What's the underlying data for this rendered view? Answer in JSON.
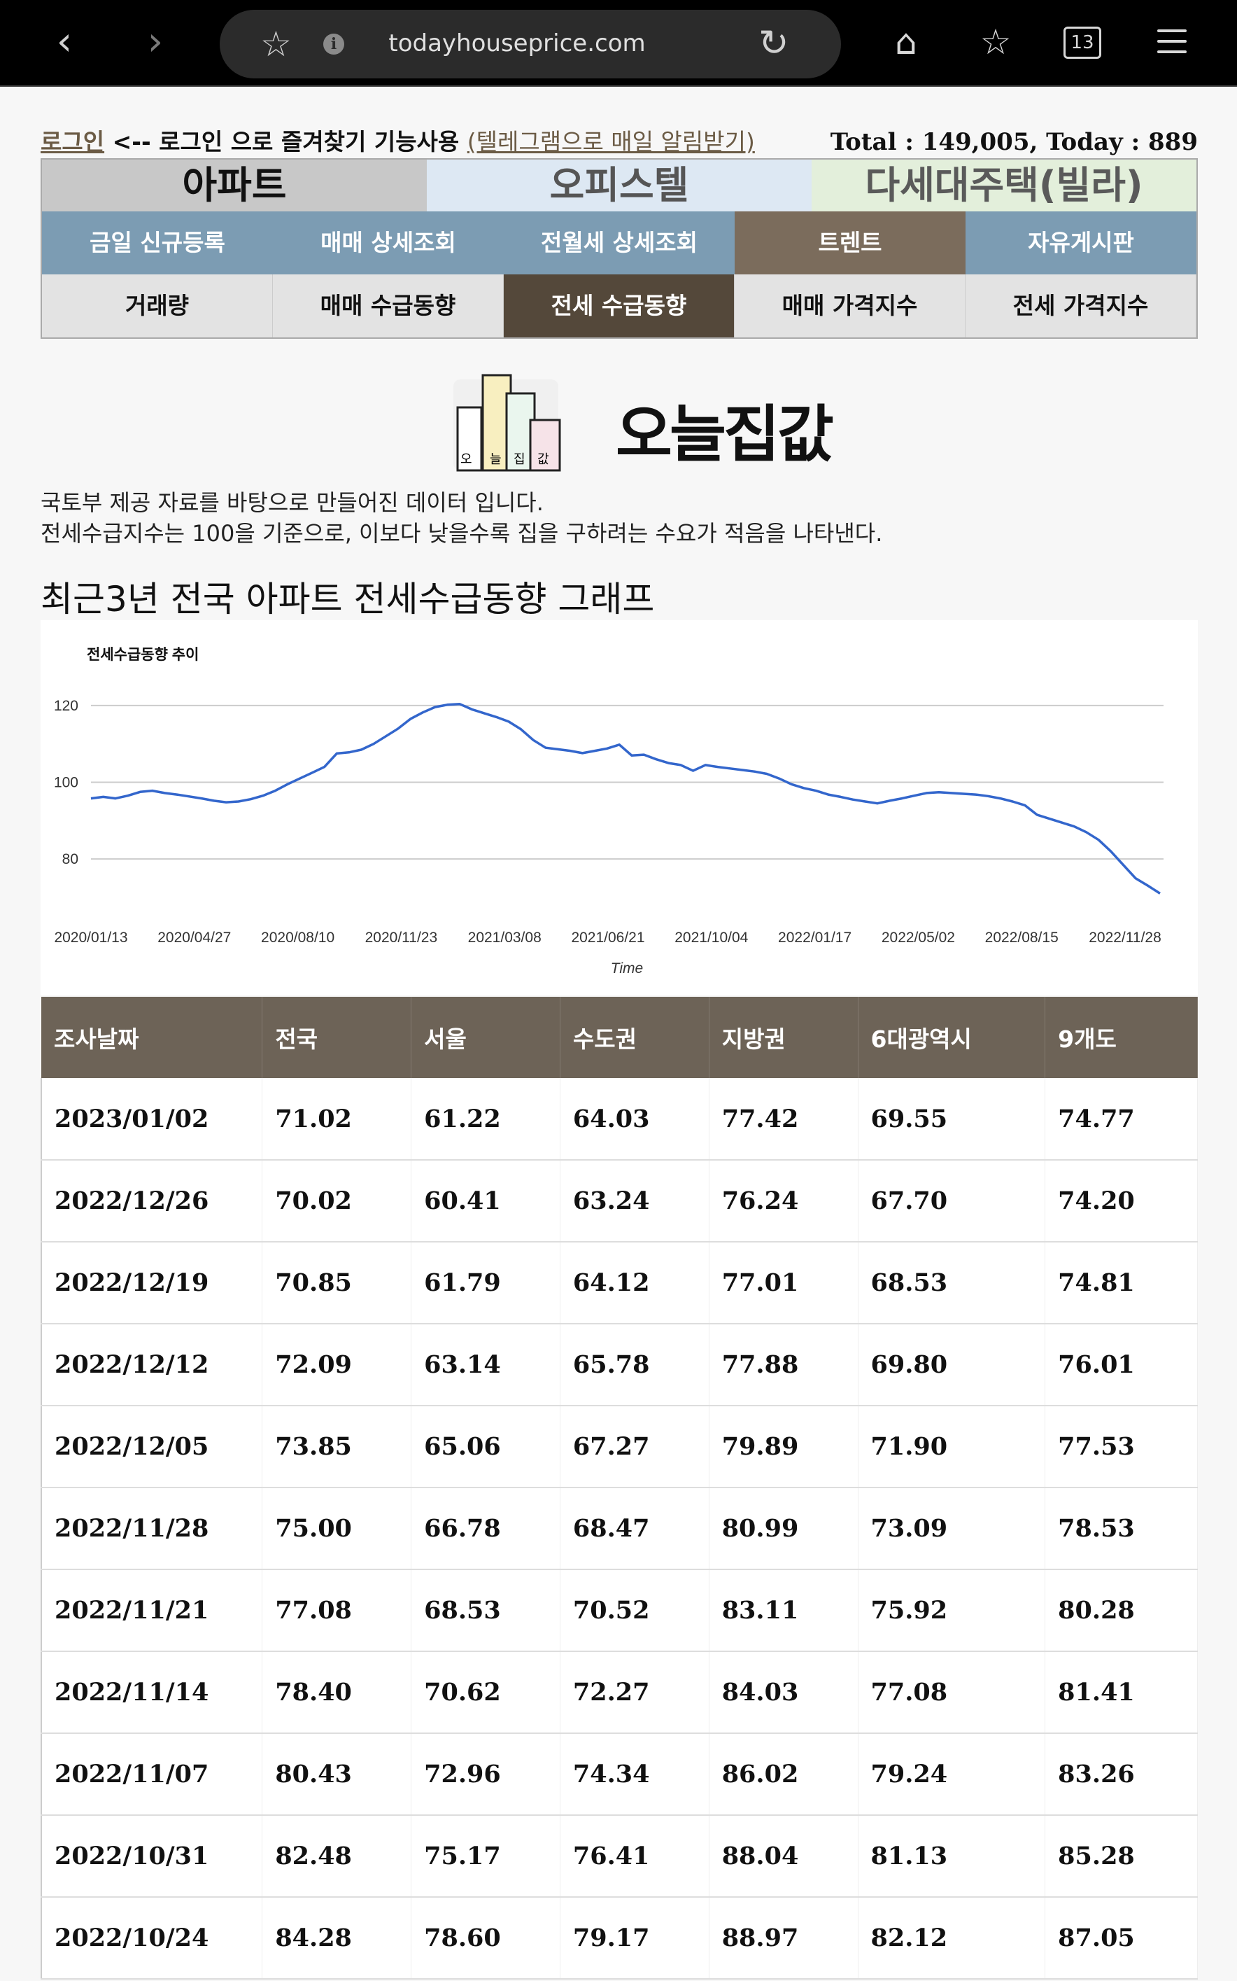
{
  "browser": {
    "url": "todayhouseprice.com",
    "tab_count": "13"
  },
  "header": {
    "login_link": "로그인",
    "login_note": "<-- 로그인 으로 즐겨찾기 기능사용",
    "telegram_link": "(텔레그램으로 매일 알림받기)",
    "total_text": "Total : 149,005, Today : 889"
  },
  "nav": {
    "category_tabs": [
      {
        "label": "아파트",
        "bg": "#c8c8c8",
        "color": "#111111"
      },
      {
        "label": "오피스텔",
        "bg": "#dde8f3",
        "color": "#555555"
      },
      {
        "label": "다세대주택(빌라)",
        "bg": "#e3efdb",
        "color": "#5a5a5a"
      }
    ],
    "menu_row": [
      "금일 신규등록",
      "매매 상세조회",
      "전월세 상세조회",
      "트렌트",
      "자유게시판"
    ],
    "menu_selected": 3,
    "trend_row": [
      "거래량",
      "매매 수급동향",
      "전세 수급동향",
      "매매 가격지수",
      "전세 가격지수"
    ],
    "trend_selected": 2
  },
  "logo": {
    "text": "오늘집값",
    "icon_name": "building-logo-icon"
  },
  "description": {
    "line1": "국토부 제공 자료를 바탕으로 만들어진 데이터 입니다.",
    "line2": "전세수급지수는 100을 기준으로, 이보다 낮을수록 집을 구하려는 수요가 적음을 나타낸다."
  },
  "graph_title": "최근3년 전국 아파트 전세수급동향 그래프",
  "chart_data": {
    "type": "line",
    "title": "전세수급동향 추이",
    "xlabel": "Time",
    "ylabel": "",
    "ylim": [
      70,
      124
    ],
    "yticks": [
      80,
      100,
      120
    ],
    "grid": true,
    "legend": "none",
    "line_color": "#3366cc",
    "x_tick_labels": [
      "2020/01/13",
      "2020/04/27",
      "2020/08/10",
      "2020/11/23",
      "2021/03/08",
      "2021/06/21",
      "2021/10/04",
      "2022/01/17",
      "2022/05/02",
      "2022/08/15",
      "2022/11/28"
    ],
    "series": [
      {
        "values": [
          95.8,
          96.2,
          95.8,
          96.5,
          97.5,
          97.8,
          97.2,
          96.8,
          96.3,
          95.8,
          95.2,
          94.8,
          95.0,
          95.6,
          96.5,
          97.8,
          99.5,
          101.0,
          102.5,
          104.0,
          107.5,
          107.8,
          108.5,
          110.0,
          112.0,
          114.0,
          116.5,
          118.2,
          119.6,
          120.2,
          120.4,
          119.0,
          118.0,
          117.0,
          115.8,
          113.8,
          111.0,
          109.0,
          108.6,
          108.2,
          107.6,
          108.2,
          108.8,
          109.8,
          107.0,
          107.2,
          106.0,
          105.0,
          104.5,
          103.0,
          104.5,
          104.0,
          103.6,
          103.2,
          102.8,
          102.2,
          101.0,
          99.5,
          98.5,
          97.8,
          96.8,
          96.2,
          95.5,
          95.0,
          94.5,
          95.2,
          95.8,
          96.5,
          97.2,
          97.4,
          97.2,
          97.0,
          96.8,
          96.4,
          95.8,
          95.0,
          94.0,
          91.5,
          90.5,
          89.5,
          88.5,
          87.0,
          85.0,
          82.0,
          78.5,
          75.0,
          73.09,
          71.02
        ]
      }
    ]
  },
  "table": {
    "headers": [
      "조사날짜",
      "전국",
      "서울",
      "수도권",
      "지방권",
      "6대광역시",
      "9개도"
    ],
    "rows": [
      [
        "2023/01/02",
        "71.02",
        "61.22",
        "64.03",
        "77.42",
        "69.55",
        "74.77"
      ],
      [
        "2022/12/26",
        "70.02",
        "60.41",
        "63.24",
        "76.24",
        "67.70",
        "74.20"
      ],
      [
        "2022/12/19",
        "70.85",
        "61.79",
        "64.12",
        "77.01",
        "68.53",
        "74.81"
      ],
      [
        "2022/12/12",
        "72.09",
        "63.14",
        "65.78",
        "77.88",
        "69.80",
        "76.01"
      ],
      [
        "2022/12/05",
        "73.85",
        "65.06",
        "67.27",
        "79.89",
        "71.90",
        "77.53"
      ],
      [
        "2022/11/28",
        "75.00",
        "66.78",
        "68.47",
        "80.99",
        "73.09",
        "78.53"
      ],
      [
        "2022/11/21",
        "77.08",
        "68.53",
        "70.52",
        "83.11",
        "75.92",
        "80.28"
      ],
      [
        "2022/11/14",
        "78.40",
        "70.62",
        "72.27",
        "84.03",
        "77.08",
        "81.41"
      ],
      [
        "2022/11/07",
        "80.43",
        "72.96",
        "74.34",
        "86.02",
        "79.24",
        "83.26"
      ],
      [
        "2022/10/31",
        "82.48",
        "75.17",
        "76.41",
        "88.04",
        "81.13",
        "85.28"
      ],
      [
        "2022/10/24",
        "84.28",
        "78.60",
        "79.17",
        "88.97",
        "82.12",
        "87.05"
      ]
    ]
  }
}
